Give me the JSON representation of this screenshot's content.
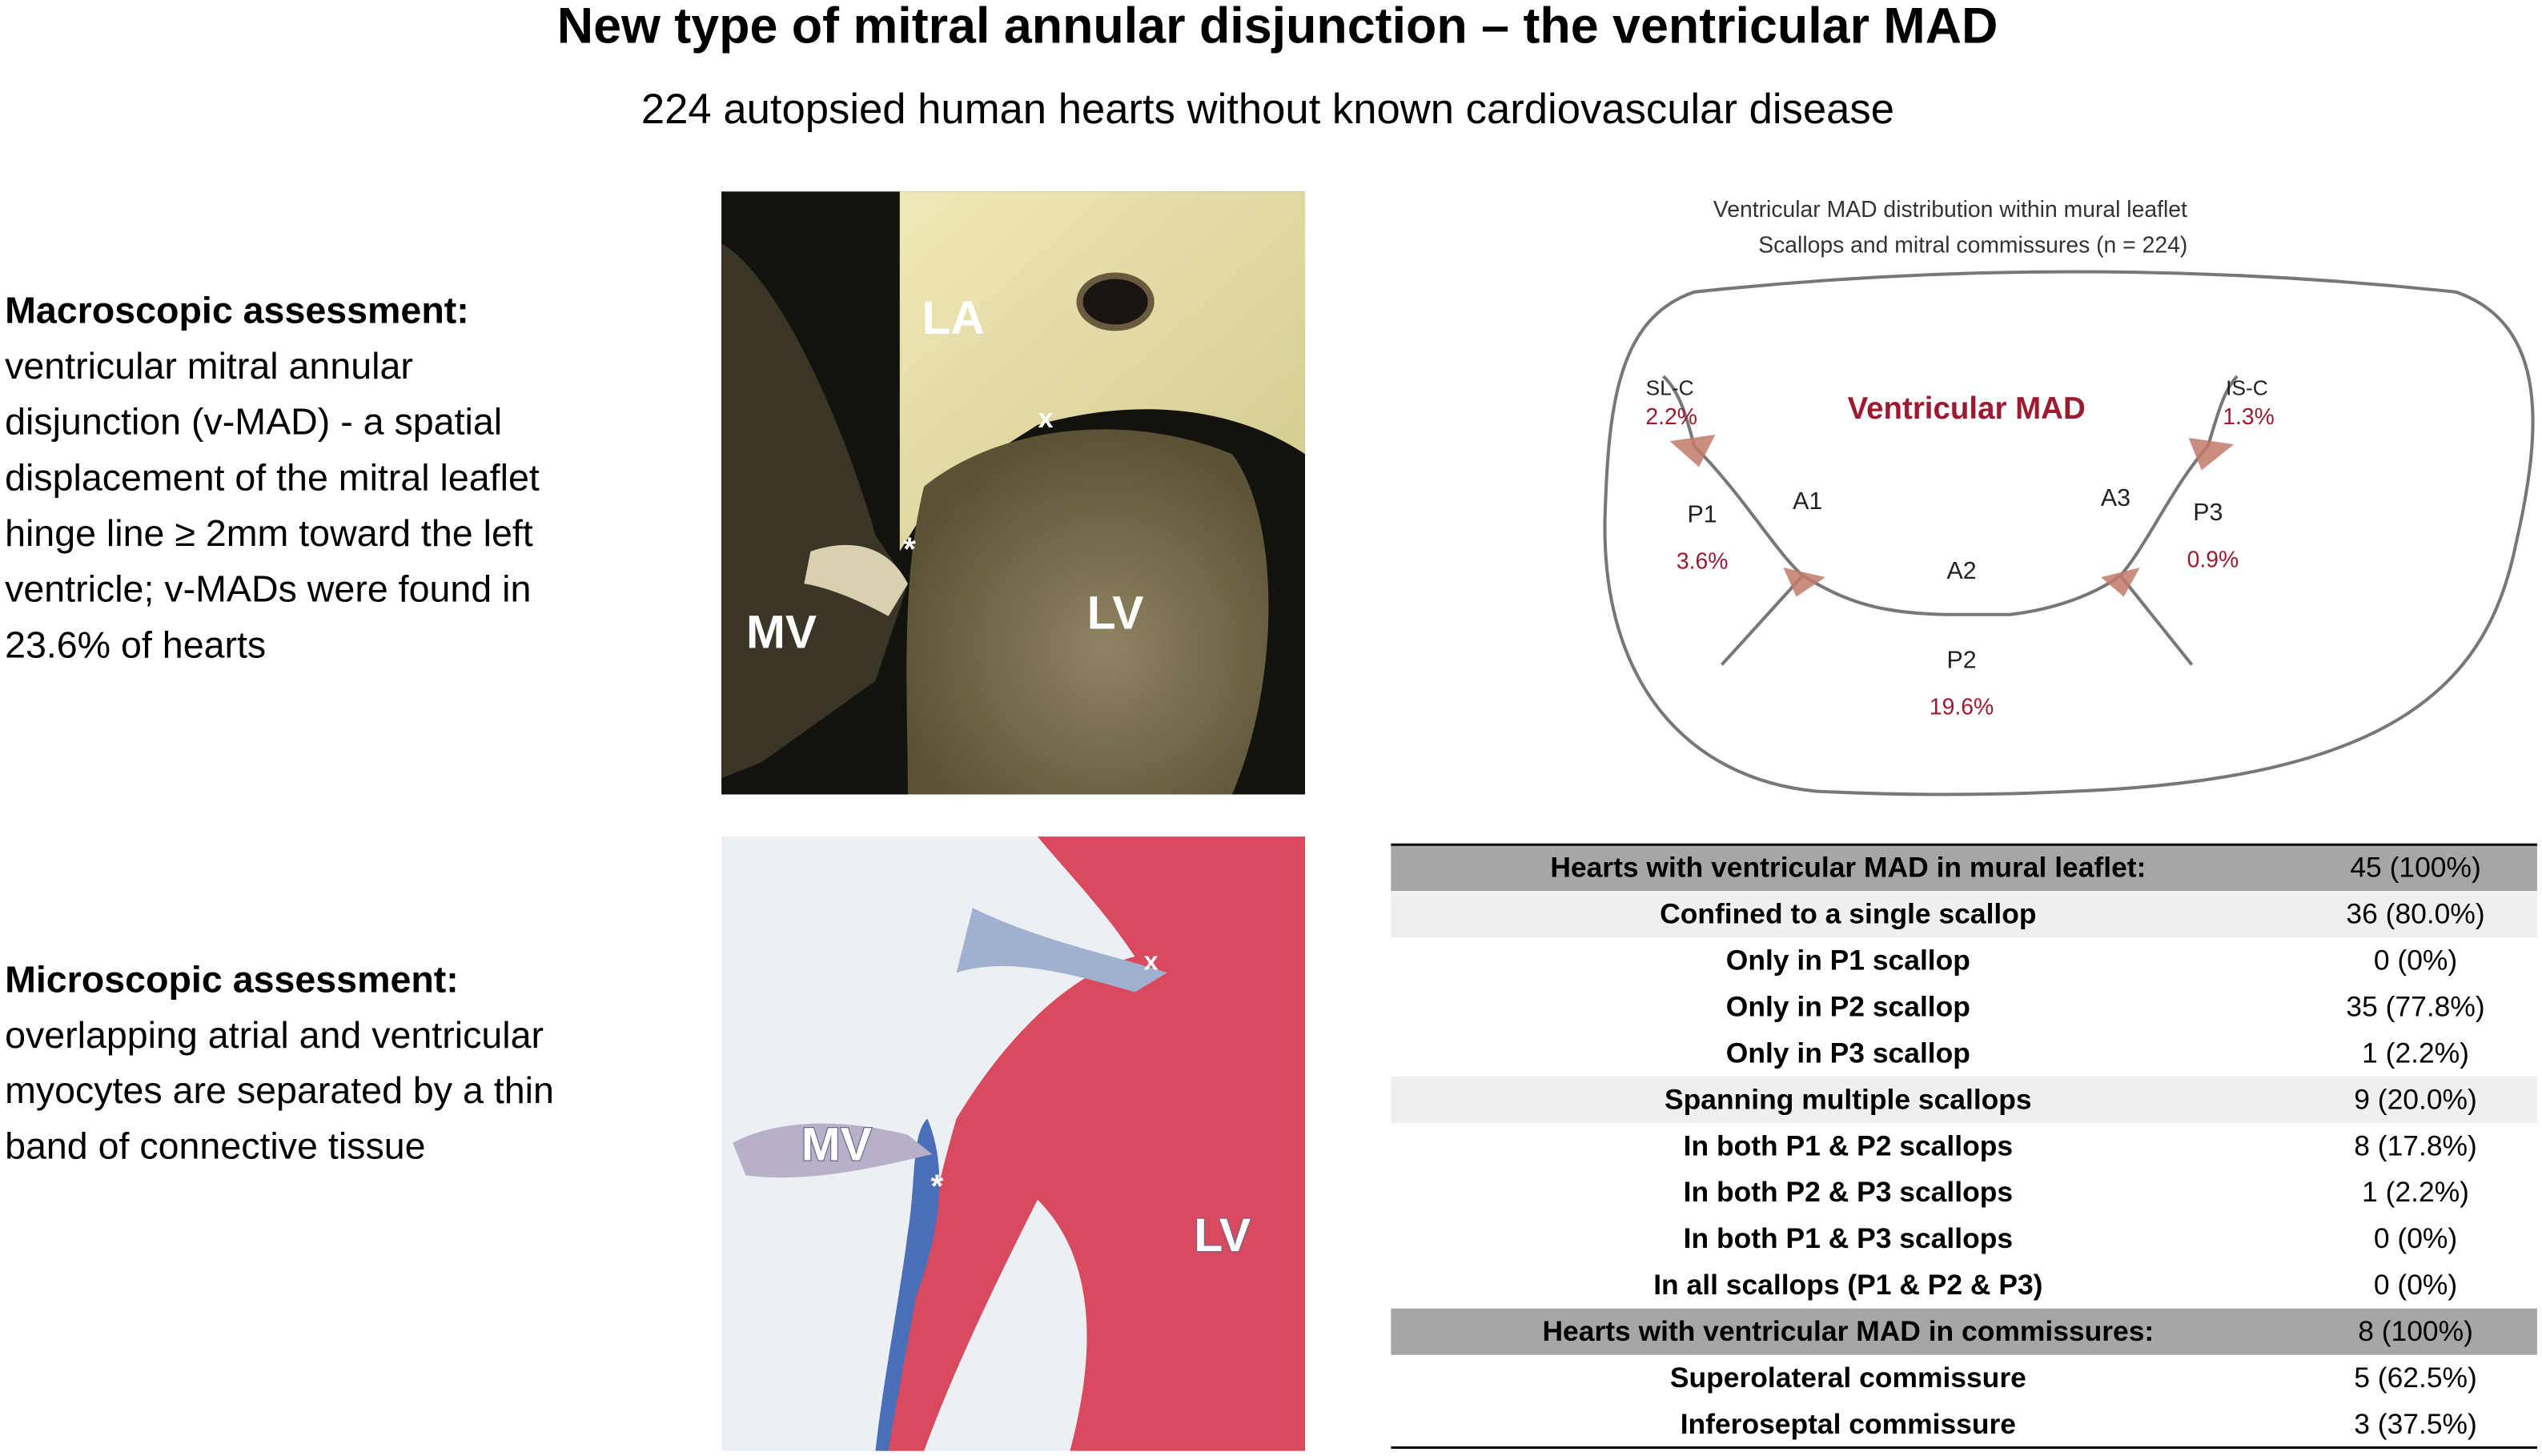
{
  "header": {
    "title": "New type of mitral annular disjunction – the ventricular MAD",
    "subtitle": "224 autopsied human hearts without known cardiovascular disease"
  },
  "macroscopic": {
    "heading": "Macroscopic assessment:",
    "lines": [
      "ventricular mitral annular",
      "disjunction (v-MAD) - a spatial",
      "displacement of the mitral leaflet",
      "hinge line ≥ 2mm toward the left",
      "ventricle; v-MADs were found in",
      "23.6% of hearts"
    ]
  },
  "microscopic": {
    "heading": "Microscopic assessment:",
    "lines": [
      "overlapping atrial and ventricular",
      "myocytes are separated by a thin",
      "band of connective tissue"
    ]
  },
  "macro_image": {
    "labels": [
      "LA",
      "x",
      "*",
      "MV",
      "LV"
    ]
  },
  "micro_image": {
    "labels": [
      "x",
      "MV",
      "*",
      "LV"
    ]
  },
  "diagram": {
    "title_lines": [
      "Ventricular MAD distribution within mural leaflet",
      "Scallops and mitral commissures (n = 224)"
    ],
    "center_label": "Ventricular MAD",
    "regions": [
      {
        "name": "SL-C",
        "pct": "2.2%"
      },
      {
        "name": "IS-C",
        "pct": "1.3%"
      },
      {
        "name": "P1",
        "pct": "3.6%"
      },
      {
        "name": "P3",
        "pct": "0.9%"
      },
      {
        "name": "P2",
        "pct": "19.6%"
      }
    ],
    "anterior": [
      "A1",
      "A2",
      "A3"
    ]
  },
  "table": {
    "rows": [
      [
        "Hearts with ventricular MAD in mural leaflet:",
        "45 (100%)"
      ],
      [
        "Confined to a single scallop",
        "36 (80.0%)"
      ],
      [
        "Only in P1 scallop",
        "0 (0%)"
      ],
      [
        "Only in P2 scallop",
        "35 (77.8%)"
      ],
      [
        "Only in P3 scallop",
        "1 (2.2%)"
      ],
      [
        "Spanning multiple scallops",
        "9 (20.0%)"
      ],
      [
        "In both P1 & P2 scallops",
        "8 (17.8%)"
      ],
      [
        "In both P2 & P3 scallops",
        "1 (2.2%)"
      ],
      [
        "In both P1 & P3 scallops",
        "0 (0%)"
      ],
      [
        "In all scallops (P1 & P2 & P3)",
        "0 (0%)"
      ],
      [
        "Hearts with ventricular MAD in commissures:",
        "8 (100%)"
      ],
      [
        "Superolateral commissure",
        "5 (62.5%)"
      ],
      [
        "Inferoseptal commissure",
        "3 (37.5%)"
      ]
    ]
  }
}
